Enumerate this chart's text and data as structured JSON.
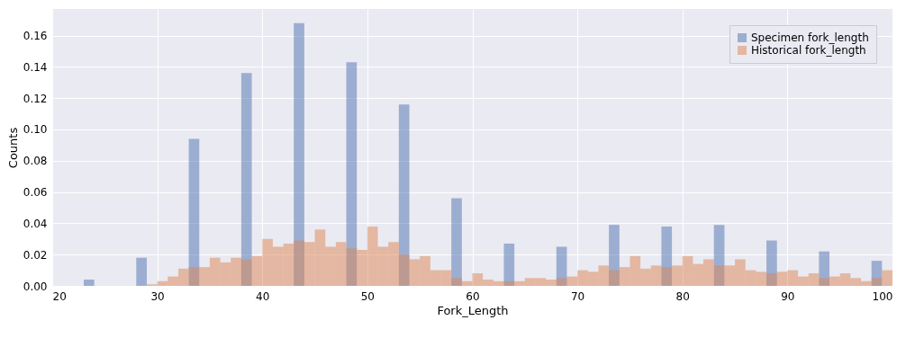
{
  "chart_data": {
    "type": "histogram",
    "xlabel": "Fork_Length",
    "ylabel": "Counts",
    "bins": [
      20,
      21,
      22,
      23,
      24,
      25,
      26,
      27,
      28,
      29,
      30,
      31,
      32,
      33,
      34,
      35,
      36,
      37,
      38,
      39,
      40,
      41,
      42,
      43,
      44,
      45,
      46,
      47,
      48,
      49,
      50,
      51,
      52,
      53,
      54,
      55,
      56,
      57,
      58,
      59,
      60,
      61,
      62,
      63,
      64,
      65,
      66,
      67,
      68,
      69,
      70,
      71,
      72,
      73,
      74,
      75,
      76,
      77,
      78,
      79,
      80,
      81,
      82,
      83,
      84,
      85,
      86,
      87,
      88,
      89,
      90,
      91,
      92,
      93,
      94,
      95,
      96,
      97,
      98,
      99,
      100
    ],
    "series": [
      {
        "name": "Specimen fork_length",
        "color": "#4c72b0",
        "values": [
          0,
          0,
          0,
          0.004,
          0,
          0,
          0,
          0,
          0.018,
          0,
          0,
          0,
          0,
          0.094,
          0,
          0,
          0,
          0,
          0.136,
          0,
          0,
          0,
          0,
          0.168,
          0,
          0,
          0,
          0,
          0.143,
          0,
          0,
          0,
          0,
          0.116,
          0,
          0,
          0,
          0,
          0.056,
          0,
          0,
          0,
          0,
          0.027,
          0,
          0,
          0,
          0,
          0.025,
          0,
          0,
          0,
          0,
          0.039,
          0,
          0,
          0,
          0,
          0.038,
          0,
          0,
          0,
          0,
          0.039,
          0,
          0,
          0,
          0,
          0.029,
          0,
          0,
          0,
          0,
          0.022,
          0,
          0,
          0,
          0,
          0.016,
          0
        ]
      },
      {
        "name": "Historical fork_length",
        "color": "#dd8452",
        "values": [
          0,
          0,
          0,
          0,
          0,
          0,
          0,
          0,
          0,
          0.001,
          0.003,
          0.006,
          0.011,
          0.012,
          0.012,
          0.018,
          0.015,
          0.018,
          0.017,
          0.019,
          0.03,
          0.025,
          0.027,
          0.029,
          0.028,
          0.036,
          0.025,
          0.028,
          0.024,
          0.023,
          0.038,
          0.025,
          0.028,
          0.02,
          0.017,
          0.019,
          0.01,
          0.01,
          0.005,
          0.003,
          0.008,
          0.004,
          0.003,
          0.003,
          0.003,
          0.005,
          0.005,
          0.004,
          0.005,
          0.006,
          0.01,
          0.009,
          0.013,
          0.01,
          0.012,
          0.019,
          0.011,
          0.013,
          0.012,
          0.013,
          0.019,
          0.014,
          0.017,
          0.013,
          0.013,
          0.017,
          0.01,
          0.009,
          0.008,
          0.009,
          0.01,
          0.006,
          0.008,
          0.005,
          0.006,
          0.008,
          0.005,
          0.003,
          0.005,
          0.01
        ]
      }
    ],
    "xlim": [
      20,
      100
    ],
    "xticks": [
      20,
      30,
      40,
      50,
      60,
      70,
      80,
      90,
      100
    ],
    "ylim": [
      0,
      0.177
    ],
    "yticks": [
      {
        "value": 0,
        "label": "0.00"
      },
      {
        "value": 0.02,
        "label": "0.02"
      },
      {
        "value": 0.04,
        "label": "0.04"
      },
      {
        "value": 0.06,
        "label": "0.06"
      },
      {
        "value": 0.08,
        "label": "0.08"
      },
      {
        "value": 0.1,
        "label": "0.10"
      },
      {
        "value": 0.12,
        "label": "0.12"
      },
      {
        "value": 0.14,
        "label": "0.14"
      },
      {
        "value": 0.16,
        "label": "0.16"
      }
    ],
    "grid": true,
    "legend": "top right"
  }
}
